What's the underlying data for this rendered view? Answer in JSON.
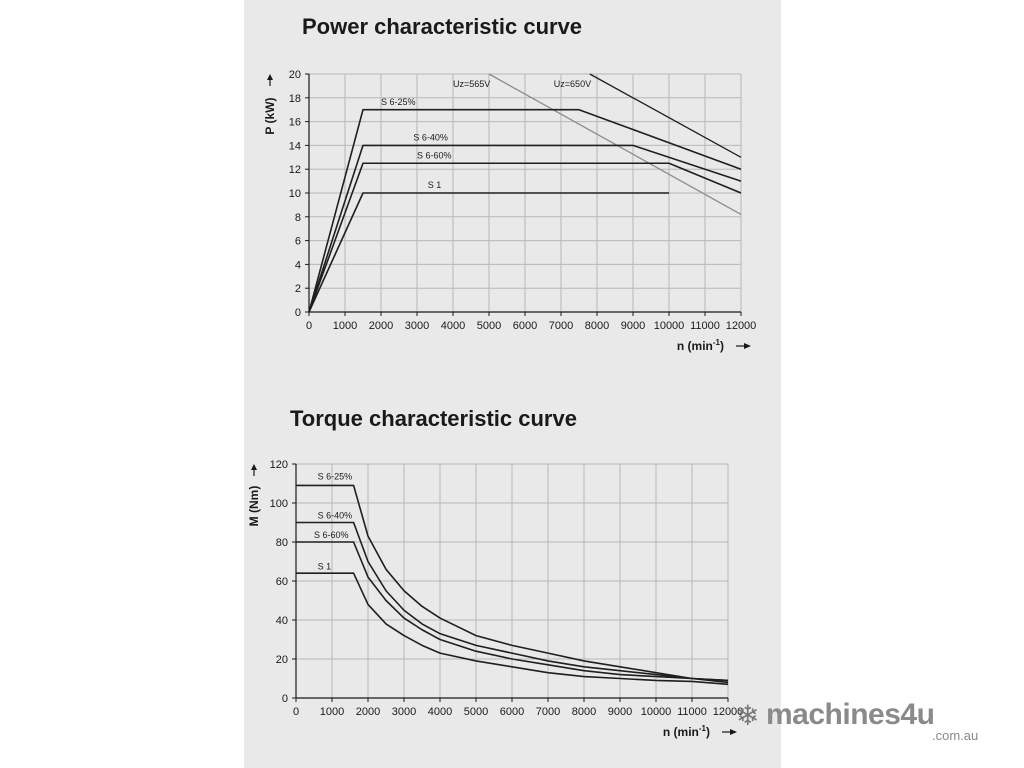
{
  "chart_data": [
    {
      "type": "line",
      "title": "Power characteristic curve",
      "xlabel": "n (min",
      "xlabel_sup": "-1",
      "xlabel_suffix": ")",
      "ylabel": "P (kW)",
      "xlim": [
        0,
        12000
      ],
      "ylim": [
        0,
        20
      ],
      "xticks": [
        0,
        1000,
        2000,
        3000,
        4000,
        5000,
        6000,
        7000,
        8000,
        9000,
        10000,
        11000,
        12000
      ],
      "yticks": [
        0,
        2,
        4,
        6,
        8,
        10,
        12,
        14,
        16,
        18,
        20
      ],
      "grid": true,
      "colors": {
        "curve": "#1f1f1f",
        "limit": "#8c8c8c",
        "grid": "#b8b8b8"
      },
      "series": [
        {
          "name": "S 6-25%",
          "label_at": [
            2000,
            17.4
          ],
          "x": [
            0,
            1500,
            7500,
            12000
          ],
          "y": [
            0,
            17,
            17,
            12
          ]
        },
        {
          "name": "S 6-40%",
          "label_at": [
            2900,
            14.4
          ],
          "x": [
            0,
            1500,
            9000,
            12000
          ],
          "y": [
            0,
            14,
            14,
            11
          ]
        },
        {
          "name": "S 6-60%",
          "label_at": [
            3000,
            12.9
          ],
          "x": [
            0,
            1500,
            10000,
            12000
          ],
          "y": [
            0,
            12.5,
            12.5,
            10
          ]
        },
        {
          "name": "S 1",
          "label_at": [
            3300,
            10.4
          ],
          "x": [
            0,
            1500,
            10000
          ],
          "y": [
            0,
            10,
            10
          ]
        }
      ],
      "limit_lines": [
        {
          "name": "Uz=565V",
          "label_at": [
            4000,
            18.9
          ],
          "style": "gray",
          "x": [
            5000,
            12000
          ],
          "y": [
            20,
            8.2
          ]
        },
        {
          "name": "Uz=650V",
          "label_at": [
            6800,
            18.9
          ],
          "style": "black",
          "x": [
            7800,
            12000
          ],
          "y": [
            20,
            13
          ]
        }
      ]
    },
    {
      "type": "line",
      "title": "Torque characteristic curve",
      "xlabel": "n (min",
      "xlabel_sup": "-1",
      "xlabel_suffix": ")",
      "ylabel": "M (Nm)",
      "xlim": [
        0,
        12000
      ],
      "ylim": [
        0,
        120
      ],
      "xticks": [
        0,
        1000,
        2000,
        3000,
        4000,
        5000,
        6000,
        7000,
        8000,
        9000,
        10000,
        11000,
        12000
      ],
      "yticks": [
        0,
        20,
        40,
        60,
        80,
        100,
        120
      ],
      "grid": true,
      "colors": {
        "curve": "#1f1f1f",
        "grid": "#b8b8b8"
      },
      "series": [
        {
          "name": "S 6-25%",
          "label_at": [
            600,
            112
          ],
          "x": [
            0,
            1600,
            2000,
            2500,
            3000,
            3500,
            4000,
            5000,
            6000,
            7000,
            8000,
            9000,
            10000,
            11000,
            12000
          ],
          "y": [
            109,
            109,
            83,
            66,
            55,
            47,
            41,
            32,
            27,
            23,
            19,
            16,
            13,
            10,
            8
          ]
        },
        {
          "name": "S 6-40%",
          "label_at": [
            600,
            92
          ],
          "x": [
            0,
            1600,
            2000,
            2500,
            3000,
            3500,
            4000,
            5000,
            6000,
            7000,
            8000,
            9000,
            10000,
            11000,
            12000
          ],
          "y": [
            90,
            90,
            70,
            55,
            45,
            38,
            33,
            27,
            23,
            19,
            16,
            14,
            12,
            10,
            9
          ]
        },
        {
          "name": "S 6-60%",
          "label_at": [
            500,
            82
          ],
          "x": [
            0,
            1600,
            2000,
            2500,
            3000,
            3500,
            4000,
            5000,
            6000,
            7000,
            8000,
            9000,
            10000,
            11000,
            12000
          ],
          "y": [
            80,
            80,
            62,
            50,
            41,
            35,
            30,
            24,
            20,
            17,
            14,
            12,
            11,
            10,
            9
          ]
        },
        {
          "name": "S 1",
          "label_at": [
            600,
            66
          ],
          "x": [
            0,
            1600,
            2000,
            2500,
            3000,
            3500,
            4000,
            5000,
            6000,
            7000,
            8000,
            9000,
            10000,
            11000,
            12000
          ],
          "y": [
            64,
            64,
            48,
            38,
            32,
            27,
            23,
            19,
            16,
            13,
            11,
            10,
            9,
            8.5,
            7
          ]
        }
      ]
    }
  ],
  "watermark": {
    "icon": "snowflake-icon",
    "text": "machines4u",
    "domain": ".com.au"
  }
}
